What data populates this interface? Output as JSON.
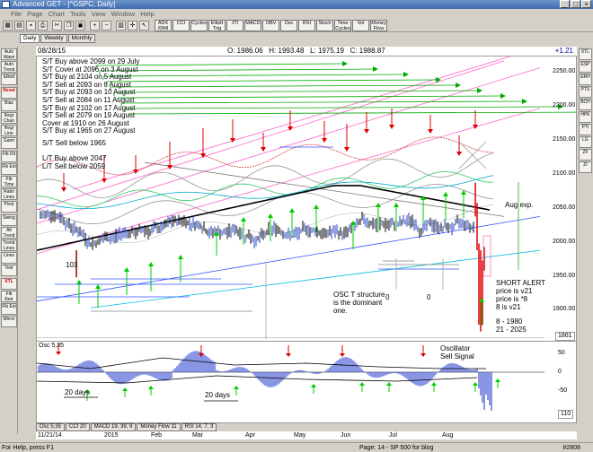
{
  "window": {
    "title": "Advanced GET - [^GSPC, Daily]"
  },
  "window_buttons": {
    "minimize": "_",
    "maximize": "□",
    "close": "×"
  },
  "menu": [
    "File",
    "Page",
    "Chart",
    "Tools",
    "View",
    "Window",
    "Help"
  ],
  "toolbar": {
    "indicator_buttons": [
      "ADX /DMI",
      "CCI",
      "Cycles",
      "Elliott Trig",
      "JTI",
      "MACD",
      "OBV",
      "Osc",
      "RSI",
      "Stoch",
      "Time Cycles",
      "Vol",
      "Money Flow"
    ]
  },
  "left_tools": [
    "Auto Wave",
    "Auto Trend",
    "Elliott",
    "Reset",
    "Bias",
    "Regr Chan",
    "Regr Line",
    "Gann",
    "Fib Dir",
    "Fib Ext",
    "Fib Time",
    "Ratio Lines",
    "Pivot",
    "Swing",
    "Alt Trend",
    "Trend Lines",
    "Lines",
    "Text",
    "XTL",
    "Fib Retr",
    "Fib Ext",
    "Mirror"
  ],
  "right_tools": [
    "XTL",
    "ESP",
    "ERH",
    "PTS",
    "BCH",
    "HPK",
    "PTI",
    "LG",
    "ZF",
    "ZI"
  ],
  "tabs": {
    "daily": "Daily",
    "weekly": "Weekly",
    "monthly": "Monthly"
  },
  "header": {
    "date": "08/28/15",
    "open": "O: 1986.06",
    "high": "H: 1993.48",
    "low": "L: 1975.19",
    "close": "C: 1988.87",
    "change": "+1.21"
  },
  "notes": [
    "S/T Buy above 2099 on 29 July",
    "S/T Cover at 2096 on 3 August",
    "S/T Buy at 2104 on 5 August",
    "S/T Sell at 2093 on 6 August",
    "S/T Buy at 2093 on 10 August",
    "S/T Sell at 2084 on 11 August",
    "S/T Buy at 2102 on 17 August",
    "S/T Sell at 2079 on 19 August",
    "Cover at 1910 on 26 August",
    "S/T Buy at 1965 on 27 August"
  ],
  "notes2": [
    "S/T Sell below 1965"
  ],
  "notes3": [
    "L/T Buy above 2047",
    "L/T Sell below 2059"
  ],
  "annotations": {
    "label_103": "103",
    "aug_exp": "Aug exp.",
    "osc_structure": [
      "OSC T structure",
      "is the dominant",
      "one."
    ],
    "zero_a": "0",
    "zero_b": "0",
    "short_alert": [
      "SHORT ALERT",
      "price is v21",
      "price is *8",
      "8 is v21"
    ],
    "levels": [
      "8    - 1980",
      "21 - 2025"
    ],
    "osc_signal": [
      "Oscillator",
      "Sell Signal"
    ],
    "twenty_days_a": "20 days",
    "twenty_days_b": "20 days",
    "osc_title": "Osc 5,35"
  },
  "price_axis": {
    "labels": [
      "2250.00",
      "2200.00",
      "2150.00",
      "2100.00",
      "2050.00",
      "2000.00",
      "1950.00",
      "1900.00"
    ],
    "last": "1861"
  },
  "osc_axis": {
    "labels": [
      "50",
      "0",
      "-50"
    ],
    "last": "110"
  },
  "bottom_tabs": [
    "Osc 5,35",
    "CCI 20",
    "MACD 19, 39, 9",
    "Money Flow 11",
    "RSI 14, 7, 3"
  ],
  "time_axis": [
    "11/21/14",
    "2015",
    "Feb",
    "Mar",
    "Apr",
    "May",
    "Jun",
    "Jul",
    "Aug"
  ],
  "status": {
    "help": "For Help, press F1",
    "page": "Page: 14 - SP 500 for blog",
    "id": "#2808"
  },
  "colors": {
    "buy_arrow": "#00cc00",
    "sell_arrow": "#dd0000",
    "bar_up": "#2040c0",
    "bar_down": "#000000",
    "osc_bar": "#3a4fd0"
  }
}
